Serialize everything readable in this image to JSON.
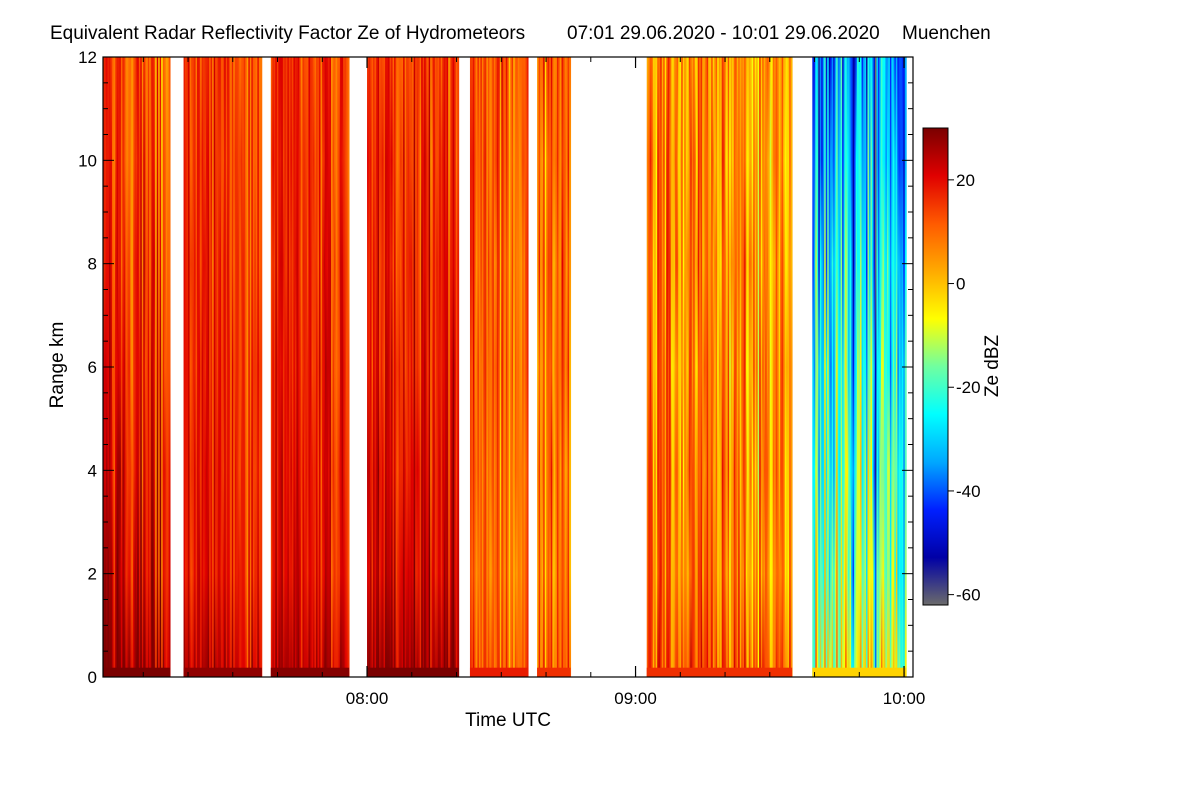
{
  "chart_data": {
    "type": "heatmap",
    "title": "Equivalent Radar Reflectivity Factor Ze of Hydrometeors",
    "time_range": "07:01 29.06.2020 - 10:01 29.06.2020",
    "location": "Muenchen",
    "xlabel": "Time UTC",
    "ylabel": "Range km",
    "colorbar_label": "Ze dBZ",
    "x_start_minutes_utc": 421,
    "x_end_minutes_utc": 601,
    "xlim_minutes": [
      421,
      602
    ],
    "x_ticks": [
      {
        "minute": 480,
        "label": "08:00"
      },
      {
        "minute": 540,
        "label": "09:00"
      },
      {
        "minute": 600,
        "label": "10:00"
      }
    ],
    "x_minor_step_minutes": 10,
    "ylim": [
      0,
      12
    ],
    "y_ticks": [
      0,
      2,
      4,
      6,
      8,
      10,
      12
    ],
    "y_minor_step": 0.5,
    "clim": [
      -62,
      30
    ],
    "c_ticks": [
      20,
      0,
      -20,
      -40,
      -60
    ],
    "colormap": [
      "#6b6b6b",
      "#0000a6",
      "#0020ff",
      "#00a8ff",
      "#00ffff",
      "#70ffa0",
      "#ffff00",
      "#ffaa00",
      "#ff5a00",
      "#e00000",
      "#7a0000"
    ],
    "segments": [
      {
        "start": 421.0,
        "end": 436.0,
        "near_surface_dbz": 23,
        "top_dbz": 12,
        "spread": 7
      },
      {
        "start": 439.0,
        "end": 456.5,
        "near_surface_dbz": 20,
        "top_dbz": 15,
        "spread": 5
      },
      {
        "start": 458.5,
        "end": 476.0,
        "near_surface_dbz": 21,
        "top_dbz": 16,
        "spread": 5
      },
      {
        "start": 480.0,
        "end": 500.5,
        "near_surface_dbz": 25,
        "top_dbz": 17,
        "spread": 6
      },
      {
        "start": 503.0,
        "end": 516.0,
        "near_surface_dbz": 10,
        "top_dbz": 14,
        "spread": 6
      },
      {
        "start": 518.0,
        "end": 525.5,
        "near_surface_dbz": 8,
        "top_dbz": 12,
        "spread": 7
      },
      {
        "start": 542.5,
        "end": 575.0,
        "near_surface_dbz": 8,
        "top_dbz": 5,
        "spread": 10
      },
      {
        "start": 579.5,
        "end": 600.5,
        "near_surface_dbz": -10,
        "top_dbz": -35,
        "spread": 14
      }
    ]
  }
}
